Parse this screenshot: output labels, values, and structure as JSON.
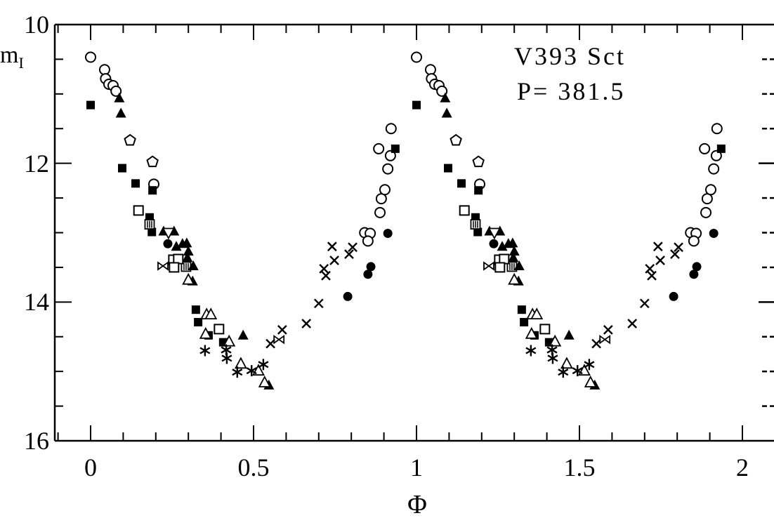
{
  "labels": {
    "title": "V393 Sct",
    "period": "P= 381.5",
    "y_main": "m",
    "y_sub": "I",
    "x": "Φ"
  },
  "chart_data": {
    "type": "scatter",
    "title": "V393 Sct",
    "annotation": "P= 381.5",
    "xlabel": "Φ",
    "ylabel": "m_I",
    "xlim": [
      -0.11,
      2.1
    ],
    "ylim": [
      16,
      10
    ],
    "y_axis_inverted": true,
    "grid": false,
    "legend": "none",
    "x_ticks_major": [
      0,
      0.5,
      1,
      1.5,
      2
    ],
    "x_tick_labels": [
      "0",
      "0.5",
      "1",
      "1.5",
      "2"
    ],
    "x_minor_step": 0.1,
    "y_ticks_major": [
      10,
      12,
      14,
      16
    ],
    "y_tick_labels": [
      "10",
      "12",
      "14",
      "16"
    ],
    "y_minor_step": 0.5,
    "right_edge_ticks_minor_mags": [
      10.5,
      11,
      11.5,
      12.5,
      13,
      13.5,
      14.5,
      15,
      15.5
    ],
    "right_edge_ticks_major_mags": [
      12,
      14
    ],
    "phase_duplication": "every point is re-plotted at phase+1 to show two cycles",
    "series": [
      {
        "name": "open-circle",
        "marker": "open-circle",
        "points": [
          [
            0.0,
            10.47
          ],
          [
            0.043,
            10.65
          ],
          [
            0.046,
            10.78
          ],
          [
            0.056,
            10.86
          ],
          [
            0.069,
            10.88
          ],
          [
            0.078,
            10.96
          ],
          [
            0.194,
            12.3
          ],
          [
            0.841,
            13.0
          ],
          [
            0.858,
            13.01
          ],
          [
            0.851,
            13.12
          ],
          [
            0.888,
            12.71
          ],
          [
            0.892,
            12.51
          ],
          [
            0.903,
            12.38
          ],
          [
            0.912,
            12.08
          ],
          [
            0.92,
            11.89
          ],
          [
            0.884,
            11.79
          ],
          [
            0.922,
            11.5
          ]
        ]
      },
      {
        "name": "open-pentagon",
        "marker": "open-pentagon",
        "points": [
          [
            0.121,
            11.67
          ],
          [
            0.19,
            11.98
          ]
        ]
      },
      {
        "name": "filled-square",
        "marker": "filled-square",
        "points": [
          [
            0.0,
            11.16
          ],
          [
            0.097,
            12.07
          ],
          [
            0.138,
            12.29
          ],
          [
            0.19,
            12.39
          ],
          [
            0.181,
            12.78
          ],
          [
            0.188,
            12.99
          ],
          [
            0.323,
            14.11
          ],
          [
            0.33,
            14.29
          ],
          [
            0.362,
            14.48
          ],
          [
            0.407,
            14.58
          ],
          [
            0.935,
            11.79
          ]
        ]
      },
      {
        "name": "striped-square",
        "marker": "striped-square",
        "points": [
          [
            0.181,
            12.88
          ],
          [
            0.293,
            13.49
          ]
        ]
      },
      {
        "name": "filled-triangle",
        "marker": "filled-triangle",
        "points": [
          [
            0.088,
            11.06
          ],
          [
            0.093,
            11.28
          ],
          [
            0.224,
            12.98
          ],
          [
            0.256,
            12.98
          ],
          [
            0.263,
            13.2
          ],
          [
            0.282,
            13.16
          ],
          [
            0.295,
            13.15
          ],
          [
            0.3,
            13.27
          ],
          [
            0.297,
            13.36
          ],
          [
            0.315,
            13.48
          ],
          [
            0.313,
            13.7
          ],
          [
            0.468,
            14.48
          ],
          [
            0.547,
            15.2
          ]
        ]
      },
      {
        "name": "open-triangle-down",
        "marker": "open-triangle-down",
        "points": [
          [
            0.239,
            13.0
          ]
        ]
      },
      {
        "name": "filled-circle",
        "marker": "filled-circle",
        "points": [
          [
            0.237,
            13.16
          ],
          [
            0.789,
            13.92
          ],
          [
            0.851,
            13.6
          ],
          [
            0.86,
            13.49
          ],
          [
            0.912,
            13.01
          ]
        ]
      },
      {
        "name": "open-square",
        "marker": "open-square",
        "points": [
          [
            0.147,
            12.68
          ],
          [
            0.254,
            13.39
          ],
          [
            0.269,
            13.38
          ],
          [
            0.256,
            13.5
          ],
          [
            0.394,
            14.39
          ]
        ]
      },
      {
        "name": "bowtie",
        "marker": "bowtie",
        "points": [
          [
            0.222,
            13.48
          ],
          [
            0.578,
            14.54
          ]
        ]
      },
      {
        "name": "open-triangle",
        "marker": "open-triangle",
        "points": [
          [
            0.3,
            13.68
          ],
          [
            0.356,
            14.18
          ],
          [
            0.369,
            14.18
          ],
          [
            0.353,
            14.46
          ],
          [
            0.425,
            14.57
          ],
          [
            0.461,
            14.89
          ],
          [
            0.515,
            14.99
          ],
          [
            0.534,
            15.16
          ]
        ]
      },
      {
        "name": "asterisk",
        "marker": "asterisk",
        "points": [
          [
            0.351,
            14.7
          ],
          [
            0.416,
            14.69
          ],
          [
            0.418,
            14.81
          ],
          [
            0.45,
            15.01
          ],
          [
            0.494,
            14.99
          ],
          [
            0.53,
            14.9
          ]
        ]
      },
      {
        "name": "x-cross",
        "marker": "x-cross",
        "points": [
          [
            0.552,
            14.6
          ],
          [
            0.588,
            14.4
          ],
          [
            0.662,
            14.31
          ],
          [
            0.7,
            14.02
          ],
          [
            0.716,
            13.52
          ],
          [
            0.722,
            13.62
          ],
          [
            0.741,
            13.2
          ],
          [
            0.748,
            13.4
          ],
          [
            0.793,
            13.31
          ],
          [
            0.804,
            13.21
          ]
        ]
      }
    ]
  }
}
